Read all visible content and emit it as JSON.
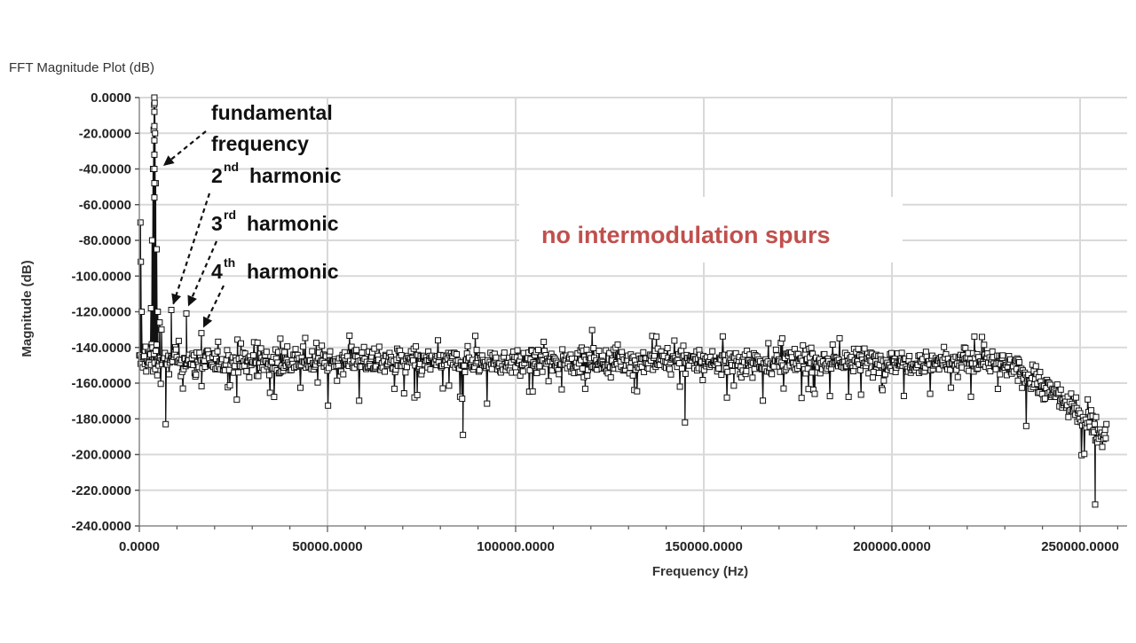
{
  "panel": {
    "title": "FFT Magnitude Plot (dB)"
  },
  "chart_data": {
    "type": "line",
    "title": "FFT Magnitude Plot (dB)",
    "xlabel": "Frequency (Hz)",
    "ylabel": "Magnitude (dB)",
    "xlim": [
      0,
      262500
    ],
    "ylim": [
      -240,
      0
    ],
    "xticks": [
      0,
      50000,
      100000,
      150000,
      200000,
      250000
    ],
    "xtick_labels": [
      "0.0000",
      "50000.0000",
      "100000.0000",
      "150000.0000",
      "200000.0000",
      "250000.0000"
    ],
    "yticks": [
      0,
      -20,
      -40,
      -60,
      -80,
      -100,
      -120,
      -140,
      -160,
      -180,
      -200,
      -220,
      -240
    ],
    "ytick_labels": [
      "0.0000",
      "-20.0000",
      "-40.0000",
      "-60.0000",
      "-80.0000",
      "-100.0000",
      "-120.0000",
      "-140.0000",
      "-160.0000",
      "-180.0000",
      "-200.0000",
      "-220.0000",
      "-240.0000"
    ],
    "grid": true,
    "marker": "square",
    "series_color": "#111111",
    "grid_color": "#d9d9d9",
    "noise": {
      "x_start": 0,
      "x_end": 257000,
      "flat_center_db": -148,
      "flat_band_db": [
        -170,
        -135
      ],
      "rolloff_start_x": 225000,
      "rolloff_end_center_db": -192
    },
    "peaks": [
      {
        "label": "fundamental frequency",
        "x": 4000,
        "y": 0
      },
      {
        "label": "2nd harmonic",
        "x": 8500,
        "y": -119
      },
      {
        "label": "3rd harmonic",
        "x": 12500,
        "y": -121
      },
      {
        "label": "4th harmonic",
        "x": 16500,
        "y": -132
      }
    ],
    "low_freq_points": [
      {
        "x": 300,
        "y": -70
      },
      {
        "x": 400,
        "y": -92
      },
      {
        "x": 600,
        "y": -120
      }
    ],
    "notable_minima": [
      {
        "x": 7000,
        "y": -183
      },
      {
        "x": 86000,
        "y": -189
      },
      {
        "x": 145000,
        "y": -182
      },
      {
        "x": 254000,
        "y": -228
      }
    ],
    "annotations": {
      "fundamental_line1": "fundamental",
      "fundamental_line2": "frequency",
      "second_num": "2",
      "second_sup": "nd",
      "second_word": "harmonic",
      "third_num": "3",
      "third_sup": "rd",
      "third_word": "harmonic",
      "fourth_num": "4",
      "fourth_sup": "th",
      "fourth_word": "harmonic",
      "note": "no intermodulation spurs",
      "note_color": "#c0504d"
    }
  }
}
